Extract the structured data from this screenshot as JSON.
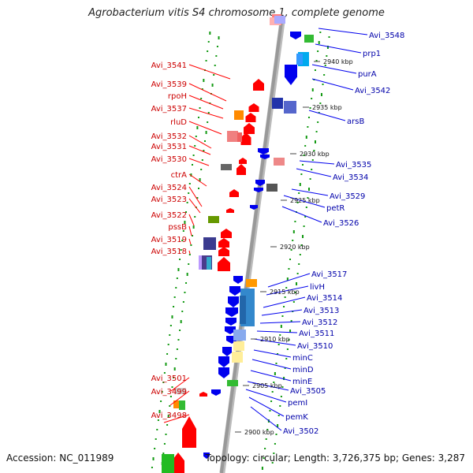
{
  "title": "Agrobacterium vitis S4 chromosome 1, complete genome",
  "accession_text": "Accession: NC_011989",
  "summary_text": "Topology: circular; Length: 3,726,375 bp; Genes: 3,287",
  "colors": {
    "forward_gene": "#ff0000",
    "reverse_gene": "#0000ee",
    "forward_label": "#cc0000",
    "reverse_label": "#0000aa",
    "backbone": "#999999",
    "orf_dots": "#119911"
  },
  "kbp_ticks": [
    "2940 kbp",
    "2935 kbp",
    "2930 kbp",
    "2925 kbp",
    "2920 kbp",
    "2915 kbp",
    "2910 kbp",
    "2905 kbp",
    "2900 kbp"
  ],
  "forward_labels": [
    "Avi_3541",
    "Avi_3539",
    "rpoH",
    "Avi_3537",
    "rluD",
    "Avi_3532",
    "Avi_3531",
    "Avi_3530",
    "ctrA",
    "Avi_3524",
    "Avi_3523",
    "Avi_3522",
    "pssB",
    "Avi_3519",
    "Avi_3518",
    "Avi_3501",
    "Avi_3499",
    "Avi_3498"
  ],
  "reverse_labels": [
    "Avi_3548",
    "prp1",
    "purA",
    "Avi_3542",
    "arsB",
    "Avi_3535",
    "Avi_3534",
    "Avi_3529",
    "petR",
    "Avi_3526",
    "Avi_3517",
    "livH",
    "Avi_3514",
    "Avi_3513",
    "Avi_3512",
    "Avi_3511",
    "Avi_3510",
    "minC",
    "minD",
    "minE",
    "Avi_3505",
    "pemI",
    "pemK",
    "Avi_3502"
  ]
}
